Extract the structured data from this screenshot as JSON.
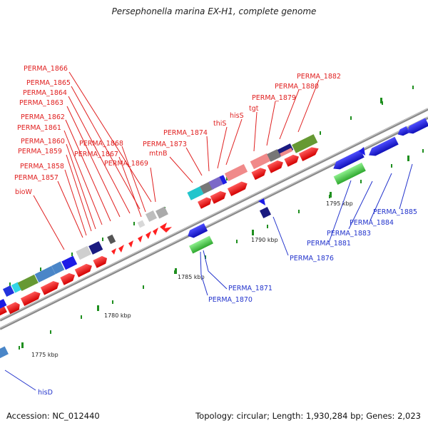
{
  "header": {
    "title": "Persephonella marina EX-H1, complete genome"
  },
  "footer": {
    "accession": "Accession: NC_012440",
    "summary": "Topology: circular; Length: 1,930,284 bp; Genes: 2,023"
  },
  "ruler": {
    "ticks": [
      "1775 kbp",
      "1780 kbp",
      "1785 kbp",
      "1790 kbp",
      "1795 kbp"
    ]
  },
  "labels": {
    "forward": [
      "PERMA_1866",
      "PERMA_1865",
      "PERMA_1864",
      "PERMA_1863",
      "PERMA_1862",
      "PERMA_1861",
      "PERMA_1860",
      "PERMA_1859",
      "PERMA_1858",
      "PERMA_1857",
      "bioW",
      "PERMA_1868",
      "PERMA_1867",
      "PERMA_1869",
      "PERMA_1874",
      "PERMA_1873",
      "mtnB",
      "thiS",
      "hisS",
      "tgt",
      "PERMA_1879",
      "PERMA_1880",
      "PERMA_1882"
    ],
    "reverse": [
      "PERMA_1871",
      "PERMA_1870",
      "PERMA_1876",
      "PERMA_1881",
      "PERMA_1883",
      "PERMA_1884",
      "PERMA_1885",
      "hisD"
    ]
  },
  "colors": {
    "forward_gene": "#ff2020",
    "forward_label": "#e02020",
    "reverse_gene": "#1c1ce6",
    "reverse_label": "#2233cc",
    "rna_gene": "#3fcf3f",
    "tick_mark": "#1f8f1f",
    "backbone": "#8c8c8c"
  }
}
